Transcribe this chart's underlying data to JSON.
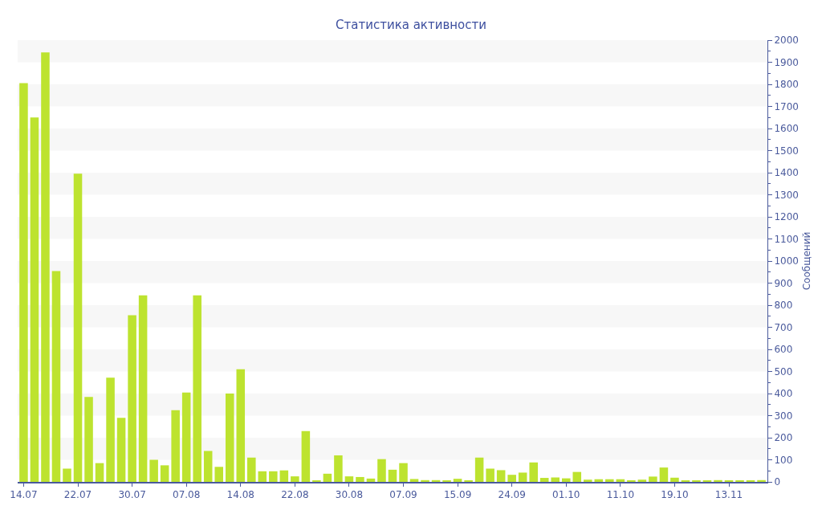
{
  "chart_data": {
    "type": "bar",
    "title": "Статистика активности",
    "ylabel": "Сообщений",
    "categories": [
      "14.07",
      null,
      null,
      null,
      null,
      "22.07",
      null,
      null,
      null,
      null,
      "30.07",
      null,
      null,
      null,
      null,
      "07.08",
      null,
      null,
      null,
      null,
      "14.08",
      null,
      null,
      null,
      null,
      "22.08",
      null,
      null,
      null,
      null,
      "30.08",
      null,
      null,
      null,
      null,
      "07.09",
      null,
      null,
      null,
      null,
      "15.09",
      null,
      null,
      null,
      null,
      "24.09",
      null,
      null,
      null,
      null,
      "01.10",
      null,
      null,
      null,
      null,
      "11.10",
      null,
      null,
      null,
      null,
      "19.10",
      null,
      null,
      null,
      null,
      "13.11",
      null,
      null,
      null
    ],
    "values": [
      1805,
      1650,
      1945,
      955,
      60,
      1395,
      385,
      85,
      472,
      290,
      755,
      845,
      100,
      75,
      325,
      405,
      845,
      140,
      68,
      400,
      510,
      110,
      48,
      48,
      52,
      25,
      230,
      5,
      37,
      120,
      25,
      22,
      15,
      103,
      55,
      85,
      13,
      8,
      8,
      6,
      14,
      4,
      110,
      60,
      53,
      32,
      42,
      88,
      18,
      20,
      16,
      45,
      10,
      12,
      12,
      12,
      7,
      10,
      24,
      65,
      19,
      5,
      5,
      5,
      8,
      6,
      5,
      5,
      8
    ],
    "color": "#bde32f",
    "ylim": [
      0,
      2000
    ],
    "yticks": [
      0,
      100,
      200,
      300,
      400,
      500,
      600,
      700,
      800,
      900,
      1000,
      1100,
      1200,
      1300,
      1400,
      1500,
      1600,
      1700,
      1800,
      1900,
      2000
    ],
    "bands": [
      {
        "axis": "y",
        "from": 100,
        "to": 200,
        "color": "#f7f7f7"
      },
      {
        "axis": "y",
        "from": 300,
        "to": 400,
        "color": "#f7f7f7"
      },
      {
        "axis": "y",
        "from": 500,
        "to": 600,
        "color": "#f7f7f7"
      },
      {
        "axis": "y",
        "from": 700,
        "to": 800,
        "color": "#f7f7f7"
      },
      {
        "axis": "y",
        "from": 900,
        "to": 1000,
        "color": "#f7f7f7"
      },
      {
        "axis": "y",
        "from": 1100,
        "to": 1200,
        "color": "#f7f7f7"
      },
      {
        "axis": "y",
        "from": 1300,
        "to": 1400,
        "color": "#f7f7f7"
      },
      {
        "axis": "y",
        "from": 1500,
        "to": 1600,
        "color": "#f7f7f7"
      },
      {
        "axis": "y",
        "from": 1700,
        "to": 1800,
        "color": "#f7f7f7"
      },
      {
        "axis": "y",
        "from": 1900,
        "to": 2000,
        "color": "#f7f7f7"
      }
    ],
    "legend": false
  }
}
